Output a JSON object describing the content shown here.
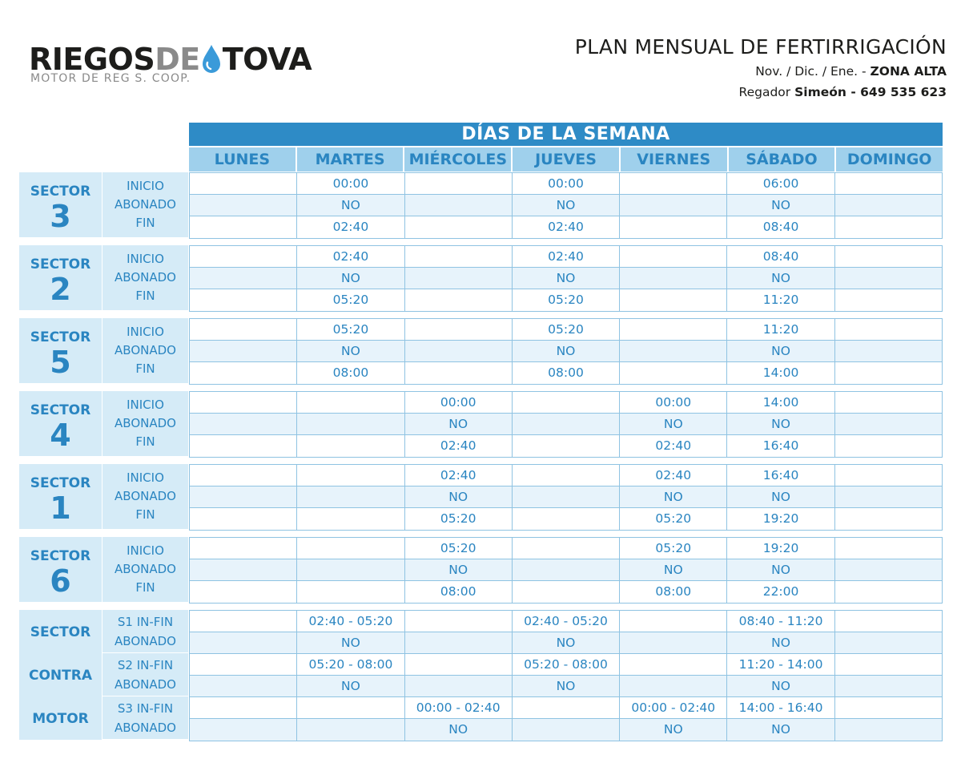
{
  "logo": {
    "part1": "RIEGOS",
    "part2": "DE",
    "part3": "TOVA",
    "subtitle": "MOTOR DE REG S. COOP.",
    "drop_icon": "water-drop-icon",
    "colors": {
      "dark": "#1d1d1b",
      "grey": "#8a8a8a",
      "drop": "#3a9ad9"
    }
  },
  "header": {
    "title": "PLAN MENSUAL DE FERTIRRIGACIÓN",
    "period": "Nov. / Dic. / Ene. - ",
    "zone": "ZONA ALTA",
    "regador_label": "Regador ",
    "regador": "Simeón - 649 535 623"
  },
  "table": {
    "days_title": "DÍAS DE LA SEMANA",
    "days": [
      "LUNES",
      "MARTES",
      "MIÉRCOLES",
      "JUEVES",
      "VIERNES",
      "SÁBADO",
      "DOMINGO"
    ],
    "row_types": [
      "INICIO",
      "ABONADO",
      "FIN"
    ],
    "sectors": [
      {
        "word": "SECTOR",
        "number": "3",
        "rows": [
          [
            "",
            "00:00",
            "",
            "00:00",
            "",
            "06:00",
            ""
          ],
          [
            "",
            "NO",
            "",
            "NO",
            "",
            "NO",
            ""
          ],
          [
            "",
            "02:40",
            "",
            "02:40",
            "",
            "08:40",
            ""
          ]
        ]
      },
      {
        "word": "SECTOR",
        "number": "2",
        "rows": [
          [
            "",
            "02:40",
            "",
            "02:40",
            "",
            "08:40",
            ""
          ],
          [
            "",
            "NO",
            "",
            "NO",
            "",
            "NO",
            ""
          ],
          [
            "",
            "05:20",
            "",
            "05:20",
            "",
            "11:20",
            ""
          ]
        ]
      },
      {
        "word": "SECTOR",
        "number": "5",
        "rows": [
          [
            "",
            "05:20",
            "",
            "05:20",
            "",
            "11:20",
            ""
          ],
          [
            "",
            "NO",
            "",
            "NO",
            "",
            "NO",
            ""
          ],
          [
            "",
            "08:00",
            "",
            "08:00",
            "",
            "14:00",
            ""
          ]
        ]
      },
      {
        "word": "SECTOR",
        "number": "4",
        "rows": [
          [
            "",
            "",
            "00:00",
            "",
            "00:00",
            "14:00",
            ""
          ],
          [
            "",
            "",
            "NO",
            "",
            "NO",
            "NO",
            ""
          ],
          [
            "",
            "",
            "02:40",
            "",
            "02:40",
            "16:40",
            ""
          ]
        ]
      },
      {
        "word": "SECTOR",
        "number": "1",
        "rows": [
          [
            "",
            "",
            "02:40",
            "",
            "02:40",
            "16:40",
            ""
          ],
          [
            "",
            "",
            "NO",
            "",
            "NO",
            "NO",
            ""
          ],
          [
            "",
            "",
            "05:20",
            "",
            "05:20",
            "19:20",
            ""
          ]
        ]
      },
      {
        "word": "SECTOR",
        "number": "6",
        "rows": [
          [
            "",
            "",
            "05:20",
            "",
            "05:20",
            "19:20",
            ""
          ],
          [
            "",
            "",
            "NO",
            "",
            "NO",
            "NO",
            ""
          ],
          [
            "",
            "",
            "08:00",
            "",
            "08:00",
            "22:00",
            ""
          ]
        ]
      }
    ],
    "contra_motor": {
      "label_words": [
        "SECTOR",
        "CONTRA",
        "MOTOR"
      ],
      "groups": [
        {
          "type": "S1 IN-FIN",
          "abonado": "ABONADO",
          "rows": [
            [
              "",
              "02:40 - 05:20",
              "",
              "02:40 - 05:20",
              "",
              "08:40 - 11:20",
              ""
            ],
            [
              "",
              "NO",
              "",
              "NO",
              "",
              "NO",
              ""
            ]
          ]
        },
        {
          "type": "S2 IN-FIN",
          "abonado": "ABONADO",
          "rows": [
            [
              "",
              "05:20 - 08:00",
              "",
              "05:20 - 08:00",
              "",
              "11:20 - 14:00",
              ""
            ],
            [
              "",
              "NO",
              "",
              "NO",
              "",
              "NO",
              ""
            ]
          ]
        },
        {
          "type": "S3 IN-FIN",
          "abonado": "ABONADO",
          "rows": [
            [
              "",
              "",
              "00:00 - 02:40",
              "",
              "00:00 - 02:40",
              "14:00 - 16:40",
              ""
            ],
            [
              "",
              "",
              "NO",
              "",
              "NO",
              "NO",
              ""
            ]
          ]
        }
      ]
    }
  }
}
